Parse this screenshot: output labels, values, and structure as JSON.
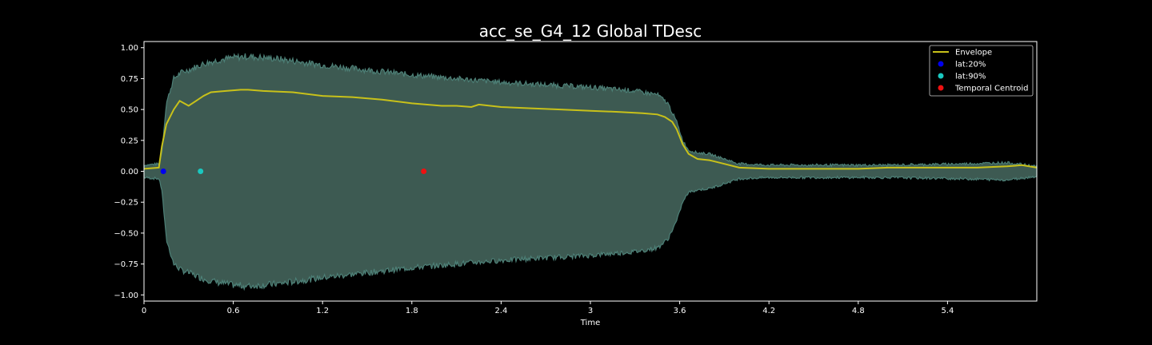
{
  "chart_data": {
    "type": "line",
    "title": "acc_se_G4_12 Global TDesc",
    "xlabel": "Time",
    "ylabel": "",
    "xlim": [
      0,
      6.0
    ],
    "ylim": [
      -1.05,
      1.05
    ],
    "xticks": [
      0,
      0.6,
      1.2,
      1.8,
      2.4,
      3.0,
      3.6,
      4.2,
      4.8,
      5.4
    ],
    "xtick_labels": [
      "0",
      "0.6",
      "1.2",
      "1.8",
      "2.4",
      "3",
      "3.6",
      "4.2",
      "4.8",
      "5.4"
    ],
    "yticks": [
      1.0,
      0.75,
      0.5,
      0.25,
      0.0,
      -0.25,
      -0.5,
      -0.75,
      -1.0
    ],
    "ytick_labels": [
      "1.00",
      "0.75",
      "0.50",
      "0.25",
      "0.00",
      "−0.25",
      "−0.50",
      "−0.75",
      "−1.00"
    ],
    "grid": false,
    "legend_position": "top-right",
    "waveform": {
      "color": "#4d8077",
      "fill_color": "#3d5a52",
      "amplitude_outline": {
        "x": [
          0,
          0.1,
          0.12,
          0.15,
          0.2,
          0.25,
          0.3,
          0.4,
          0.5,
          0.6,
          0.7,
          0.9,
          1.2,
          1.5,
          1.8,
          2.1,
          2.4,
          2.7,
          3.0,
          3.3,
          3.45,
          3.52,
          3.58,
          3.62,
          3.66,
          3.72,
          3.8,
          3.9,
          4.0,
          4.2,
          4.5,
          5.0,
          5.5,
          5.8,
          6.0
        ],
        "y": [
          0.05,
          0.06,
          0.15,
          0.55,
          0.75,
          0.8,
          0.82,
          0.87,
          0.9,
          0.92,
          0.93,
          0.91,
          0.86,
          0.82,
          0.78,
          0.75,
          0.72,
          0.7,
          0.68,
          0.65,
          0.62,
          0.55,
          0.4,
          0.25,
          0.17,
          0.15,
          0.14,
          0.1,
          0.06,
          0.05,
          0.05,
          0.05,
          0.06,
          0.07,
          0.04
        ]
      }
    },
    "series": [
      {
        "name": "Envelope",
        "color": "#c8c11a",
        "x": [
          0,
          0.1,
          0.12,
          0.15,
          0.2,
          0.24,
          0.27,
          0.3,
          0.35,
          0.4,
          0.45,
          0.55,
          0.65,
          0.7,
          0.8,
          1.0,
          1.2,
          1.4,
          1.6,
          1.8,
          2.0,
          2.1,
          2.2,
          2.25,
          2.4,
          2.6,
          2.8,
          3.0,
          3.2,
          3.35,
          3.45,
          3.5,
          3.55,
          3.58,
          3.62,
          3.66,
          3.72,
          3.8,
          3.9,
          4.0,
          4.2,
          4.5,
          4.8,
          5.0,
          5.2,
          5.4,
          5.6,
          5.8,
          5.9,
          6.0
        ],
        "y": [
          0.02,
          0.03,
          0.2,
          0.38,
          0.5,
          0.57,
          0.55,
          0.53,
          0.57,
          0.61,
          0.64,
          0.65,
          0.66,
          0.66,
          0.65,
          0.64,
          0.61,
          0.6,
          0.58,
          0.55,
          0.53,
          0.53,
          0.52,
          0.54,
          0.52,
          0.51,
          0.5,
          0.49,
          0.48,
          0.47,
          0.46,
          0.44,
          0.4,
          0.34,
          0.22,
          0.14,
          0.1,
          0.09,
          0.06,
          0.03,
          0.02,
          0.02,
          0.02,
          0.03,
          0.03,
          0.03,
          0.03,
          0.04,
          0.05,
          0.03
        ]
      },
      {
        "name": "lat:20%",
        "type": "scatter",
        "color": "#0000ee",
        "x": [
          0.13
        ],
        "y": [
          0.0
        ]
      },
      {
        "name": "lat:90%",
        "type": "scatter",
        "color": "#1ac8c0",
        "x": [
          0.38
        ],
        "y": [
          0.0
        ]
      },
      {
        "name": "Temporal Centroid",
        "type": "scatter",
        "color": "#ee1111",
        "x": [
          1.88
        ],
        "y": [
          0.0
        ]
      }
    ]
  }
}
